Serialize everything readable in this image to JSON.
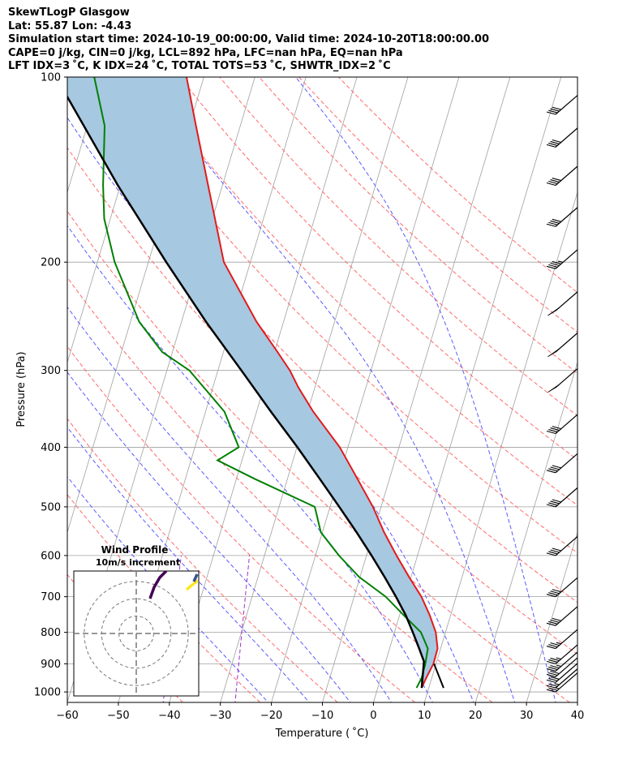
{
  "header": {
    "line1": "SkewTLogP Glasgow",
    "line2": "Lat: 55.87   Lon: -4.43",
    "line3": "Simulation start time: 2024-10-19_00:00:00, Valid time: 2024-10-20T18:00:00.00",
    "line4": "CAPE=0 j/kg, CIN=0 j/kg, LCL=892 hPa, LFC=nan hPa, EQ=nan hPa",
    "line5": "LFT IDX=3 ˚C, K IDX=24 ˚C, TOTAL TOTS=53 ˚C, SHWTR_IDX=2 ˚C"
  },
  "chart_data": {
    "type": "skewt",
    "xlabel": "Temperature ( ˚C)",
    "ylabel": "Pressure (hPa)",
    "xlim": [
      -60,
      40
    ],
    "ylim": [
      1040,
      100
    ],
    "x_ticks": [
      -60,
      -50,
      -40,
      -30,
      -20,
      -10,
      0,
      10,
      20,
      30,
      40
    ],
    "y_ticks": [
      100,
      200,
      300,
      400,
      500,
      600,
      700,
      800,
      900,
      1000
    ],
    "y_scale": "log",
    "grid": true,
    "colors": {
      "temperature": "#e31a1c",
      "dewpoint": "#008000",
      "parcel": "#000000",
      "surface_parcel": "#000000",
      "cape_fill": "#a6c8e0",
      "isotherms": "#a0a0a0",
      "dry_adiabats": "#ff6a6a",
      "moist_adiabats": "#5a5aff",
      "mixing_ratio": "#9b30d0"
    },
    "temperature_profile": [
      {
        "p": 985,
        "t": 8.6
      },
      {
        "p": 950,
        "t": 8.9
      },
      {
        "p": 900,
        "t": 9.5
      },
      {
        "p": 850,
        "t": 9.4
      },
      {
        "p": 800,
        "t": 8.1
      },
      {
        "p": 750,
        "t": 5.9
      },
      {
        "p": 700,
        "t": 3.2
      },
      {
        "p": 650,
        "t": -0.4
      },
      {
        "p": 600,
        "t": -4.1
      },
      {
        "p": 550,
        "t": -7.9
      },
      {
        "p": 500,
        "t": -11.6
      },
      {
        "p": 450,
        "t": -16.3
      },
      {
        "p": 400,
        "t": -21.6
      },
      {
        "p": 350,
        "t": -28.9
      },
      {
        "p": 320,
        "t": -33.2
      },
      {
        "p": 300,
        "t": -35.9
      },
      {
        "p": 280,
        "t": -39.4
      },
      {
        "p": 250,
        "t": -45.3
      },
      {
        "p": 200,
        "t": -55.2
      },
      {
        "p": 150,
        "t": -62.8
      },
      {
        "p": 120,
        "t": -68.7
      },
      {
        "p": 100,
        "t": -73.4
      }
    ],
    "dewpoint_profile": [
      {
        "p": 985,
        "t": 7.6
      },
      {
        "p": 950,
        "t": 8.0
      },
      {
        "p": 900,
        "t": 7.9
      },
      {
        "p": 850,
        "t": 7.5
      },
      {
        "p": 800,
        "t": 5.2
      },
      {
        "p": 750,
        "t": 0.8
      },
      {
        "p": 700,
        "t": -3.8
      },
      {
        "p": 650,
        "t": -10.2
      },
      {
        "p": 600,
        "t": -15.4
      },
      {
        "p": 550,
        "t": -20.3
      },
      {
        "p": 500,
        "t": -23.0
      },
      {
        "p": 450,
        "t": -36.5
      },
      {
        "p": 420,
        "t": -44.8
      },
      {
        "p": 400,
        "t": -41.4
      },
      {
        "p": 350,
        "t": -46.3
      },
      {
        "p": 300,
        "t": -55.6
      },
      {
        "p": 280,
        "t": -62.0
      },
      {
        "p": 250,
        "t": -68.3
      },
      {
        "p": 200,
        "t": -76.6
      },
      {
        "p": 170,
        "t": -81.2
      },
      {
        "p": 150,
        "t": -83.4
      },
      {
        "p": 120,
        "t": -86.6
      },
      {
        "p": 100,
        "t": -91.5
      }
    ],
    "parcel_profile": [
      {
        "p": 985,
        "t": 8.6
      },
      {
        "p": 892,
        "t": 7.5
      },
      {
        "p": 850,
        "t": 5.8
      },
      {
        "p": 800,
        "t": 3.6
      },
      {
        "p": 750,
        "t": 1.2
      },
      {
        "p": 700,
        "t": -1.8
      },
      {
        "p": 650,
        "t": -5.2
      },
      {
        "p": 600,
        "t": -9.0
      },
      {
        "p": 550,
        "t": -13.3
      },
      {
        "p": 500,
        "t": -18.2
      },
      {
        "p": 450,
        "t": -23.7
      },
      {
        "p": 400,
        "t": -29.9
      },
      {
        "p": 350,
        "t": -37.2
      },
      {
        "p": 300,
        "t": -45.4
      },
      {
        "p": 250,
        "t": -55.2
      },
      {
        "p": 200,
        "t": -66.5
      },
      {
        "p": 150,
        "t": -80.5
      },
      {
        "p": 100,
        "t": -99.0
      }
    ],
    "surface_parcel_segment": [
      {
        "p": 985,
        "t": 12.9
      },
      {
        "p": 900,
        "t": 9.6
      }
    ],
    "wind_barbs": [
      {
        "p": 1000,
        "speed_kt": 25,
        "dir": 240
      },
      {
        "p": 985,
        "speed_kt": 25,
        "dir": 240
      },
      {
        "p": 965,
        "speed_kt": 30,
        "dir": 240
      },
      {
        "p": 945,
        "speed_kt": 30,
        "dir": 240
      },
      {
        "p": 925,
        "speed_kt": 35,
        "dir": 240
      },
      {
        "p": 900,
        "speed_kt": 35,
        "dir": 240
      },
      {
        "p": 850,
        "speed_kt": 35,
        "dir": 240
      },
      {
        "p": 780,
        "speed_kt": 40,
        "dir": 240
      },
      {
        "p": 700,
        "speed_kt": 40,
        "dir": 240
      },
      {
        "p": 600,
        "speed_kt": 40,
        "dir": 240
      },
      {
        "p": 500,
        "speed_kt": 40,
        "dir": 240
      },
      {
        "p": 440,
        "speed_kt": 40,
        "dir": 240
      },
      {
        "p": 380,
        "speed_kt": 40,
        "dir": 240
      },
      {
        "p": 320,
        "speed_kt": 50,
        "dir": 240
      },
      {
        "p": 280,
        "speed_kt": 50,
        "dir": 240
      },
      {
        "p": 240,
        "speed_kt": 50,
        "dir": 240
      },
      {
        "p": 205,
        "speed_kt": 45,
        "dir": 240
      },
      {
        "p": 175,
        "speed_kt": 40,
        "dir": 240
      },
      {
        "p": 150,
        "speed_kt": 40,
        "dir": 240
      },
      {
        "p": 130,
        "speed_kt": 40,
        "dir": 240
      },
      {
        "p": 115,
        "speed_kt": 40,
        "dir": 240
      }
    ],
    "inset": {
      "title": "Wind Profile",
      "subtitle": "10m/s increment",
      "rings": [
        10,
        20,
        30
      ],
      "range": 36
    }
  }
}
